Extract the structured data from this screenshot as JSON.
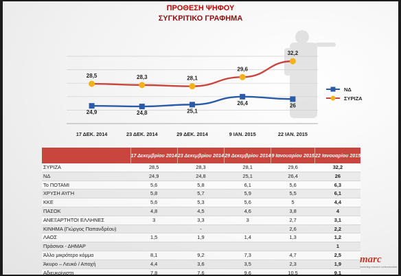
{
  "header": {
    "title": "ΠΡΟΘΕΣΗ ΨΗΦΟΥ",
    "subtitle": "ΣΥΓΚΡΙΤΙΚΟ ΓΡΑΦΗΜΑ"
  },
  "colors": {
    "nd": "#2a5aa8",
    "syriza": "#c8463e",
    "syriza_marker": "#f2b21b",
    "header_row": "#c8463e"
  },
  "chart_data": {
    "type": "line",
    "categories": [
      "17 ΔΕΚ. 2014",
      "23 ΔΕΚ. 2014",
      "29 ΔΕΚ. 2014",
      "9 ΙΑΝ. 2015",
      "22 ΙΑΝ. 2015"
    ],
    "series": [
      {
        "name": "ΝΔ",
        "values": [
          24.9,
          24.8,
          25.1,
          26.4,
          26
        ],
        "labels": [
          "24,9",
          "24,8",
          "25,1",
          "26,4",
          "26"
        ]
      },
      {
        "name": "ΣΥΡΙΖΑ",
        "values": [
          28.5,
          28.3,
          28.1,
          29.6,
          32.2
        ],
        "labels": [
          "28,5",
          "28,3",
          "28,1",
          "29,6",
          "32,2"
        ]
      }
    ],
    "ylim": [
      22,
      33
    ],
    "grid": true,
    "legend": "right"
  },
  "table": {
    "columns": [
      "17 Δεκεμβρίου 2014",
      "23 Δεκεμβρίου 2014",
      "29 Δεκεμβρίου 2014",
      "9 Ιανουαρίου 2015",
      "22 Ιανουαρίου 2015"
    ],
    "rows": [
      {
        "label": "ΣΥΡΙΖΑ",
        "values": [
          "28,5",
          "28,3",
          "28,1",
          "29,6",
          "32,2"
        ]
      },
      {
        "label": "ΝΔ",
        "values": [
          "24,9",
          "24,8",
          "25,1",
          "26,4",
          "26"
        ]
      },
      {
        "label": "Το ΠΟΤΑΜΙ",
        "values": [
          "5,6",
          "5,8",
          "6,1",
          "5,6",
          "6,3"
        ]
      },
      {
        "label": "ΧΡΥΣΗ ΑΥΓΗ",
        "values": [
          "5,8",
          "5,7",
          "5,9",
          "5,5",
          "6,1"
        ]
      },
      {
        "label": "ΚΚΕ",
        "values": [
          "5,6",
          "5,3",
          "5,6",
          "5",
          "4,4"
        ]
      },
      {
        "label": "ΠΑΣΟΚ",
        "values": [
          "4,8",
          "4,5",
          "4,6",
          "3,8",
          "4"
        ]
      },
      {
        "label": "ΑΝΕΞΑΡΤΗΤΟΙ ΕΛΛΗΝΕΣ",
        "values": [
          "3",
          "3,3",
          "3",
          "2,7",
          "3,1"
        ]
      },
      {
        "label": "ΚΙΝΗΜΑ (Γιώργος Παπανδρέου)",
        "values": [
          "",
          "-",
          "",
          "2,6",
          "2,2"
        ]
      },
      {
        "label": "ΛΑΟΣ",
        "values": [
          "1,5",
          "1,9",
          "1,4",
          "1,3",
          "1,2"
        ]
      },
      {
        "label": "Πράσινοι - ΔΗΜΑΡ",
        "values": [
          "",
          "",
          "",
          "",
          "1"
        ]
      },
      {
        "label": "Άλλο μικρότερο κόμμα",
        "values": [
          "8,1",
          "9,2",
          "7,3",
          "4,7",
          "2,5"
        ]
      },
      {
        "label": "Άκυρο – Λευκό / Αποχή",
        "values": [
          "4,4",
          "3,6",
          "3,5",
          "2,3",
          "1,9"
        ]
      },
      {
        "label": "Αδιευκρίνιστη",
        "values": [
          "7,8",
          "7,6",
          "9,6",
          "10,5",
          "9,1"
        ]
      }
    ]
  },
  "logo": {
    "text": "marc",
    "tagline": "marketing research communication"
  }
}
